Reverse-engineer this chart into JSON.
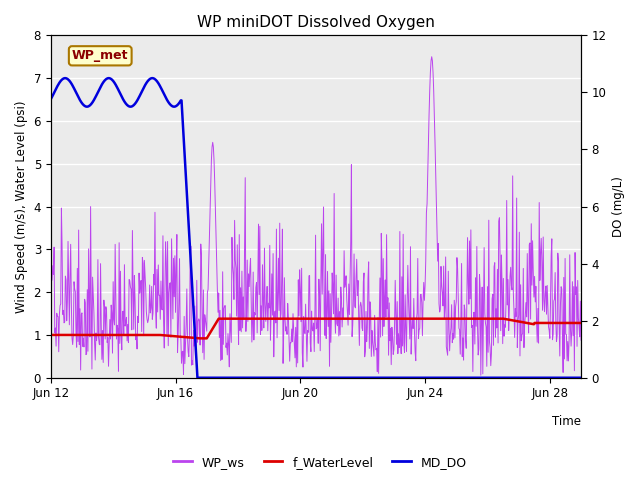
{
  "title": "WP miniDOT Dissolved Oxygen",
  "ylabel_left": "Wind Speed (m/s), Water Level (psi)",
  "ylabel_right": "DO (mg/L)",
  "xlabel": "Time",
  "annotation": "WP_met",
  "ylim_left": [
    0.0,
    8.0
  ],
  "ylim_right": [
    0,
    12
  ],
  "yticks_left": [
    0.0,
    1.0,
    2.0,
    3.0,
    4.0,
    5.0,
    6.0,
    7.0,
    8.0
  ],
  "yticks_right": [
    0,
    2,
    4,
    6,
    8,
    10,
    12
  ],
  "bg_color": "#ebebeb",
  "line_wp_ws_color": "#bb44ee",
  "line_waterlevel_color": "#dd0000",
  "line_md_do_color": "#0000dd",
  "legend_labels": [
    "WP_ws",
    "f_WaterLevel",
    "MD_DO"
  ],
  "legend_colors": [
    "#bb44ee",
    "#dd0000",
    "#0000dd"
  ],
  "xlim": [
    0,
    17
  ],
  "xtick_pos": [
    0,
    4,
    8,
    12,
    16
  ],
  "xtick_labels": [
    "Jun 12",
    "Jun 16",
    "Jun 20",
    "Jun 24",
    "Jun 28"
  ]
}
